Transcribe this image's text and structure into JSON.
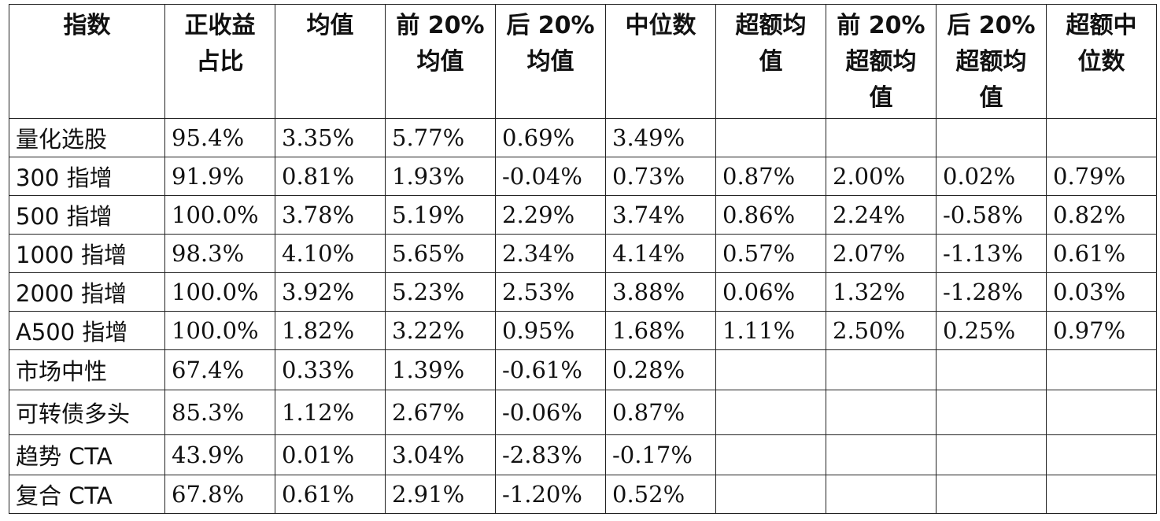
{
  "headers": [
    "指数",
    "正收益占比",
    "均值",
    "前 20%均值",
    "后 20%均值",
    "中位数",
    "超额均值",
    "前 20%超额均值",
    "后 20%超额均值",
    "超额中位数"
  ],
  "header_lines": [
    [
      "指数"
    ],
    [
      "正收益",
      "占比"
    ],
    [
      "均值"
    ],
    [
      "前 20%",
      "均值"
    ],
    [
      "后 20%",
      "均值"
    ],
    [
      "中位数"
    ],
    [
      "超额均",
      "值"
    ],
    [
      "前 20%",
      "超额均",
      "值"
    ],
    [
      "后 20%",
      "超额均",
      "值"
    ],
    [
      "超额中",
      "位数"
    ]
  ],
  "rows": [
    [
      "量化选股",
      "95.4%",
      "3.35%",
      "5.77%",
      "0.69%",
      "3.49%",
      "",
      "",
      "",
      ""
    ],
    [
      "300 指增",
      "91.9%",
      "0.81%",
      "1.93%",
      "-0.04%",
      "0.73%",
      "0.87%",
      "2.00%",
      "0.02%",
      "0.79%"
    ],
    [
      "500 指增",
      "100.0%",
      "3.78%",
      "5.19%",
      "2.29%",
      "3.74%",
      "0.86%",
      "2.24%",
      "-0.58%",
      "0.82%"
    ],
    [
      "1000 指增",
      "98.3%",
      "4.10%",
      "5.65%",
      "2.34%",
      "4.14%",
      "0.57%",
      "2.07%",
      "-1.13%",
      "0.61%"
    ],
    [
      "2000 指增",
      "100.0%",
      "3.92%",
      "5.23%",
      "2.53%",
      "3.88%",
      "0.06%",
      "1.32%",
      "-1.28%",
      "0.03%"
    ],
    [
      "A500 指增",
      "100.0%",
      "1.82%",
      "3.22%",
      "0.95%",
      "1.68%",
      "1.11%",
      "2.50%",
      "0.25%",
      "0.97%"
    ],
    [
      "市场中性",
      "67.4%",
      "0.33%",
      "1.39%",
      "-0.61%",
      "0.28%",
      "",
      "",
      "",
      ""
    ],
    [
      "可转债多头",
      "85.3%",
      "1.12%",
      "2.67%",
      "-0.06%",
      "0.87%",
      "",
      "",
      "",
      ""
    ],
    [
      "趋势 CTA",
      "43.9%",
      "0.01%",
      "3.04%",
      "-2.83%",
      "-0.17%",
      "",
      "",
      "",
      ""
    ],
    [
      "复合 CTA",
      "67.8%",
      "0.61%",
      "2.91%",
      "-1.20%",
      "0.52%",
      "",
      "",
      "",
      ""
    ]
  ]
}
